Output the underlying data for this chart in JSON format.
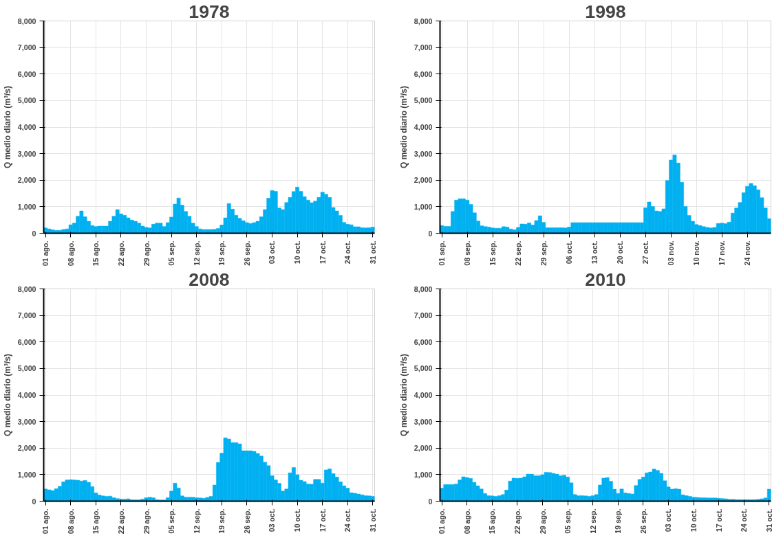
{
  "chart_data": [
    {
      "type": "bar",
      "title": "1978",
      "ylabel": "Q medio diario (m³/s)",
      "color": "#00b0f0",
      "grid": true,
      "ylim": [
        0,
        8000
      ],
      "yticks": [
        0,
        {
          "value": 1000,
          "label": "1,000"
        },
        {
          "value": 2000,
          "label": "2,000"
        },
        {
          "value": 3000,
          "label": "3,000"
        },
        {
          "value": 4000,
          "label": "4,000"
        },
        {
          "value": 5000,
          "label": "5,000"
        },
        {
          "value": 6000,
          "label": "6,000"
        },
        {
          "value": 7000,
          "label": "7,000"
        },
        {
          "value": 8000,
          "label": "8,000"
        }
      ],
      "categories": [
        "01 ago.",
        null,
        null,
        null,
        null,
        null,
        null,
        "08 ago.",
        null,
        null,
        null,
        null,
        null,
        null,
        "15 ago.",
        null,
        null,
        null,
        null,
        null,
        null,
        "22 ago.",
        null,
        null,
        null,
        null,
        null,
        null,
        "29 ago.",
        null,
        null,
        null,
        null,
        null,
        null,
        "05 sep.",
        null,
        null,
        null,
        null,
        null,
        null,
        "12 sep.",
        null,
        null,
        null,
        null,
        null,
        null,
        "19 sep.",
        null,
        null,
        null,
        null,
        null,
        null,
        "26 sep.",
        null,
        null,
        null,
        null,
        null,
        null,
        "03 oct.",
        null,
        null,
        null,
        null,
        null,
        null,
        "10 oct.",
        null,
        null,
        null,
        null,
        null,
        null,
        "17 oct.",
        null,
        null,
        null,
        null,
        null,
        null,
        "24 oct.",
        null,
        null,
        null,
        null,
        null,
        null,
        "31 oct."
      ],
      "values": [
        200,
        165,
        130,
        110,
        110,
        140,
        165,
        320,
        380,
        640,
        840,
        620,
        450,
        290,
        255,
        270,
        270,
        270,
        450,
        640,
        890,
        730,
        680,
        580,
        500,
        450,
        380,
        270,
        220,
        200,
        340,
        380,
        380,
        255,
        400,
        610,
        1100,
        1330,
        1060,
        820,
        640,
        380,
        255,
        165,
        140,
        140,
        140,
        150,
        180,
        310,
        580,
        1120,
        910,
        680,
        560,
        470,
        400,
        370,
        400,
        450,
        620,
        890,
        1320,
        1610,
        1580,
        950,
        890,
        1160,
        1350,
        1570,
        1740,
        1580,
        1380,
        1250,
        1150,
        1210,
        1350,
        1550,
        1470,
        1350,
        970,
        840,
        670,
        410,
        340,
        320,
        245,
        245,
        210,
        200,
        210,
        230
      ]
    },
    {
      "type": "bar",
      "title": "1998",
      "ylabel": "Q medio diario (m³/s)",
      "color": "#00b0f0",
      "grid": true,
      "ylim": [
        0,
        8000
      ],
      "yticks": [
        0,
        {
          "value": 1000,
          "label": "1,000"
        },
        {
          "value": 2000,
          "label": "2,000"
        },
        {
          "value": 3000,
          "label": "3,000"
        },
        {
          "value": 4000,
          "label": "4,000"
        },
        {
          "value": 5000,
          "label": "5,000"
        },
        {
          "value": 6000,
          "label": "6,000"
        },
        {
          "value": 7000,
          "label": "7,000"
        },
        {
          "value": 8000,
          "label": "8,000"
        }
      ],
      "categories": [
        "01 sep.",
        null,
        null,
        null,
        null,
        null,
        null,
        "08 sep.",
        null,
        null,
        null,
        null,
        null,
        null,
        "15 sep.",
        null,
        null,
        null,
        null,
        null,
        null,
        "22 sep.",
        null,
        null,
        null,
        null,
        null,
        null,
        "29 sep.",
        null,
        null,
        null,
        null,
        null,
        null,
        "06 oct.",
        null,
        null,
        null,
        null,
        null,
        null,
        "13 oct.",
        null,
        null,
        null,
        null,
        null,
        null,
        "20 oct.",
        null,
        null,
        null,
        null,
        null,
        null,
        "27 oct.",
        null,
        null,
        null,
        null,
        null,
        null,
        "03 nov.",
        null,
        null,
        null,
        null,
        null,
        null,
        "10 nov.",
        null,
        null,
        null,
        null,
        null,
        null,
        "17 nov.",
        null,
        null,
        null,
        null,
        null,
        null,
        "24 nov.",
        null,
        null,
        null,
        null,
        null,
        null
      ],
      "values": [
        290,
        260,
        260,
        820,
        1250,
        1300,
        1300,
        1250,
        1090,
        770,
        460,
        280,
        250,
        230,
        200,
        190,
        190,
        250,
        230,
        160,
        130,
        220,
        350,
        340,
        390,
        310,
        480,
        660,
        410,
        210,
        210,
        210,
        210,
        210,
        200,
        230,
        400,
        400,
        400,
        400,
        400,
        400,
        400,
        400,
        400,
        400,
        400,
        400,
        400,
        400,
        400,
        400,
        400,
        400,
        400,
        400,
        960,
        1180,
        1010,
        840,
        820,
        920,
        1990,
        2760,
        2950,
        2650,
        1920,
        1010,
        670,
        450,
        330,
        290,
        250,
        220,
        200,
        220,
        370,
        380,
        360,
        420,
        760,
        950,
        1160,
        1530,
        1770,
        1880,
        1790,
        1640,
        1340,
        950,
        550
      ]
    },
    {
      "type": "bar",
      "title": "2008",
      "ylabel": "Q medio diario (m³/s)",
      "color": "#00b0f0",
      "grid": true,
      "ylim": [
        0,
        8000
      ],
      "yticks": [
        0,
        {
          "value": 1000,
          "label": "1,000"
        },
        {
          "value": 2000,
          "label": "2,000"
        },
        {
          "value": 3000,
          "label": "3,000"
        },
        {
          "value": 4000,
          "label": "4,000"
        },
        {
          "value": 5000,
          "label": "5,000"
        },
        {
          "value": 6000,
          "label": "6,000"
        },
        {
          "value": 7000,
          "label": "7,000"
        },
        {
          "value": 8000,
          "label": "8,000"
        }
      ],
      "categories": [
        "01 ago.",
        null,
        null,
        null,
        null,
        null,
        null,
        "08 ago.",
        null,
        null,
        null,
        null,
        null,
        null,
        "15 ago.",
        null,
        null,
        null,
        null,
        null,
        null,
        "22 ago.",
        null,
        null,
        null,
        null,
        null,
        null,
        "29 ago.",
        null,
        null,
        null,
        null,
        null,
        null,
        "05 sep.",
        null,
        null,
        null,
        null,
        null,
        null,
        "12 sep.",
        null,
        null,
        null,
        null,
        null,
        null,
        "19 sep.",
        null,
        null,
        null,
        null,
        null,
        null,
        "26 sep.",
        null,
        null,
        null,
        null,
        null,
        null,
        "03 oct.",
        null,
        null,
        null,
        null,
        null,
        null,
        "10 oct.",
        null,
        null,
        null,
        null,
        null,
        null,
        "17 oct.",
        null,
        null,
        null,
        null,
        null,
        null,
        "24 oct.",
        null,
        null,
        null,
        null,
        null,
        null,
        "31 oct."
      ],
      "values": [
        460,
        430,
        400,
        470,
        560,
        730,
        800,
        810,
        800,
        790,
        760,
        780,
        710,
        550,
        310,
        230,
        200,
        180,
        190,
        130,
        100,
        80,
        80,
        90,
        55,
        55,
        55,
        80,
        130,
        150,
        130,
        60,
        45,
        45,
        130,
        380,
        680,
        500,
        200,
        150,
        150,
        150,
        130,
        120,
        110,
        140,
        180,
        610,
        1460,
        1810,
        2390,
        2340,
        2210,
        2210,
        2160,
        1900,
        1900,
        1900,
        1880,
        1800,
        1700,
        1470,
        1340,
        960,
        800,
        670,
        380,
        460,
        1070,
        1270,
        1000,
        790,
        740,
        650,
        640,
        820,
        820,
        680,
        1180,
        1220,
        1040,
        910,
        730,
        580,
        490,
        320,
        300,
        270,
        240,
        210,
        200,
        180
      ]
    },
    {
      "type": "bar",
      "title": "2010",
      "ylabel": "Q medio diario (m³/s)",
      "color": "#00b0f0",
      "grid": true,
      "ylim": [
        0,
        8000
      ],
      "yticks": [
        0,
        {
          "value": 1000,
          "label": "1,000"
        },
        {
          "value": 2000,
          "label": "2,000"
        },
        {
          "value": 3000,
          "label": "3,000"
        },
        {
          "value": 4000,
          "label": "4,000"
        },
        {
          "value": 5000,
          "label": "5,000"
        },
        {
          "value": 6000,
          "label": "6,000"
        },
        {
          "value": 7000,
          "label": "7,000"
        },
        {
          "value": 8000,
          "label": "8,000"
        }
      ],
      "categories": [
        "01 ago.",
        null,
        null,
        null,
        null,
        null,
        null,
        "08 ago.",
        null,
        null,
        null,
        null,
        null,
        null,
        "15 ago.",
        null,
        null,
        null,
        null,
        null,
        null,
        "22 ago.",
        null,
        null,
        null,
        null,
        null,
        null,
        "29 ago.",
        null,
        null,
        null,
        null,
        null,
        null,
        "05 sep.",
        null,
        null,
        null,
        null,
        null,
        null,
        "12 sep.",
        null,
        null,
        null,
        null,
        null,
        null,
        "19 sep.",
        null,
        null,
        null,
        null,
        null,
        null,
        "26 sep.",
        null,
        null,
        null,
        null,
        null,
        null,
        "03 oct.",
        null,
        null,
        null,
        null,
        null,
        null,
        "10 oct.",
        null,
        null,
        null,
        null,
        null,
        null,
        "17 oct.",
        null,
        null,
        null,
        null,
        null,
        null,
        "24 oct.",
        null,
        null,
        null,
        null,
        null,
        null,
        "31 oct."
      ],
      "values": [
        490,
        630,
        630,
        630,
        650,
        800,
        920,
        890,
        860,
        710,
        580,
        460,
        290,
        210,
        200,
        180,
        210,
        250,
        420,
        760,
        870,
        860,
        870,
        920,
        1020,
        1020,
        960,
        960,
        1000,
        1090,
        1080,
        1050,
        1020,
        960,
        980,
        910,
        690,
        250,
        210,
        210,
        200,
        180,
        210,
        250,
        610,
        870,
        890,
        750,
        450,
        290,
        460,
        310,
        290,
        270,
        590,
        820,
        910,
        1070,
        1100,
        1210,
        1160,
        1050,
        770,
        540,
        450,
        470,
        450,
        240,
        210,
        180,
        150,
        140,
        130,
        130,
        120,
        120,
        120,
        110,
        100,
        90,
        70,
        70,
        60,
        60,
        60,
        60,
        60,
        60,
        70,
        90,
        120,
        450
      ]
    }
  ]
}
